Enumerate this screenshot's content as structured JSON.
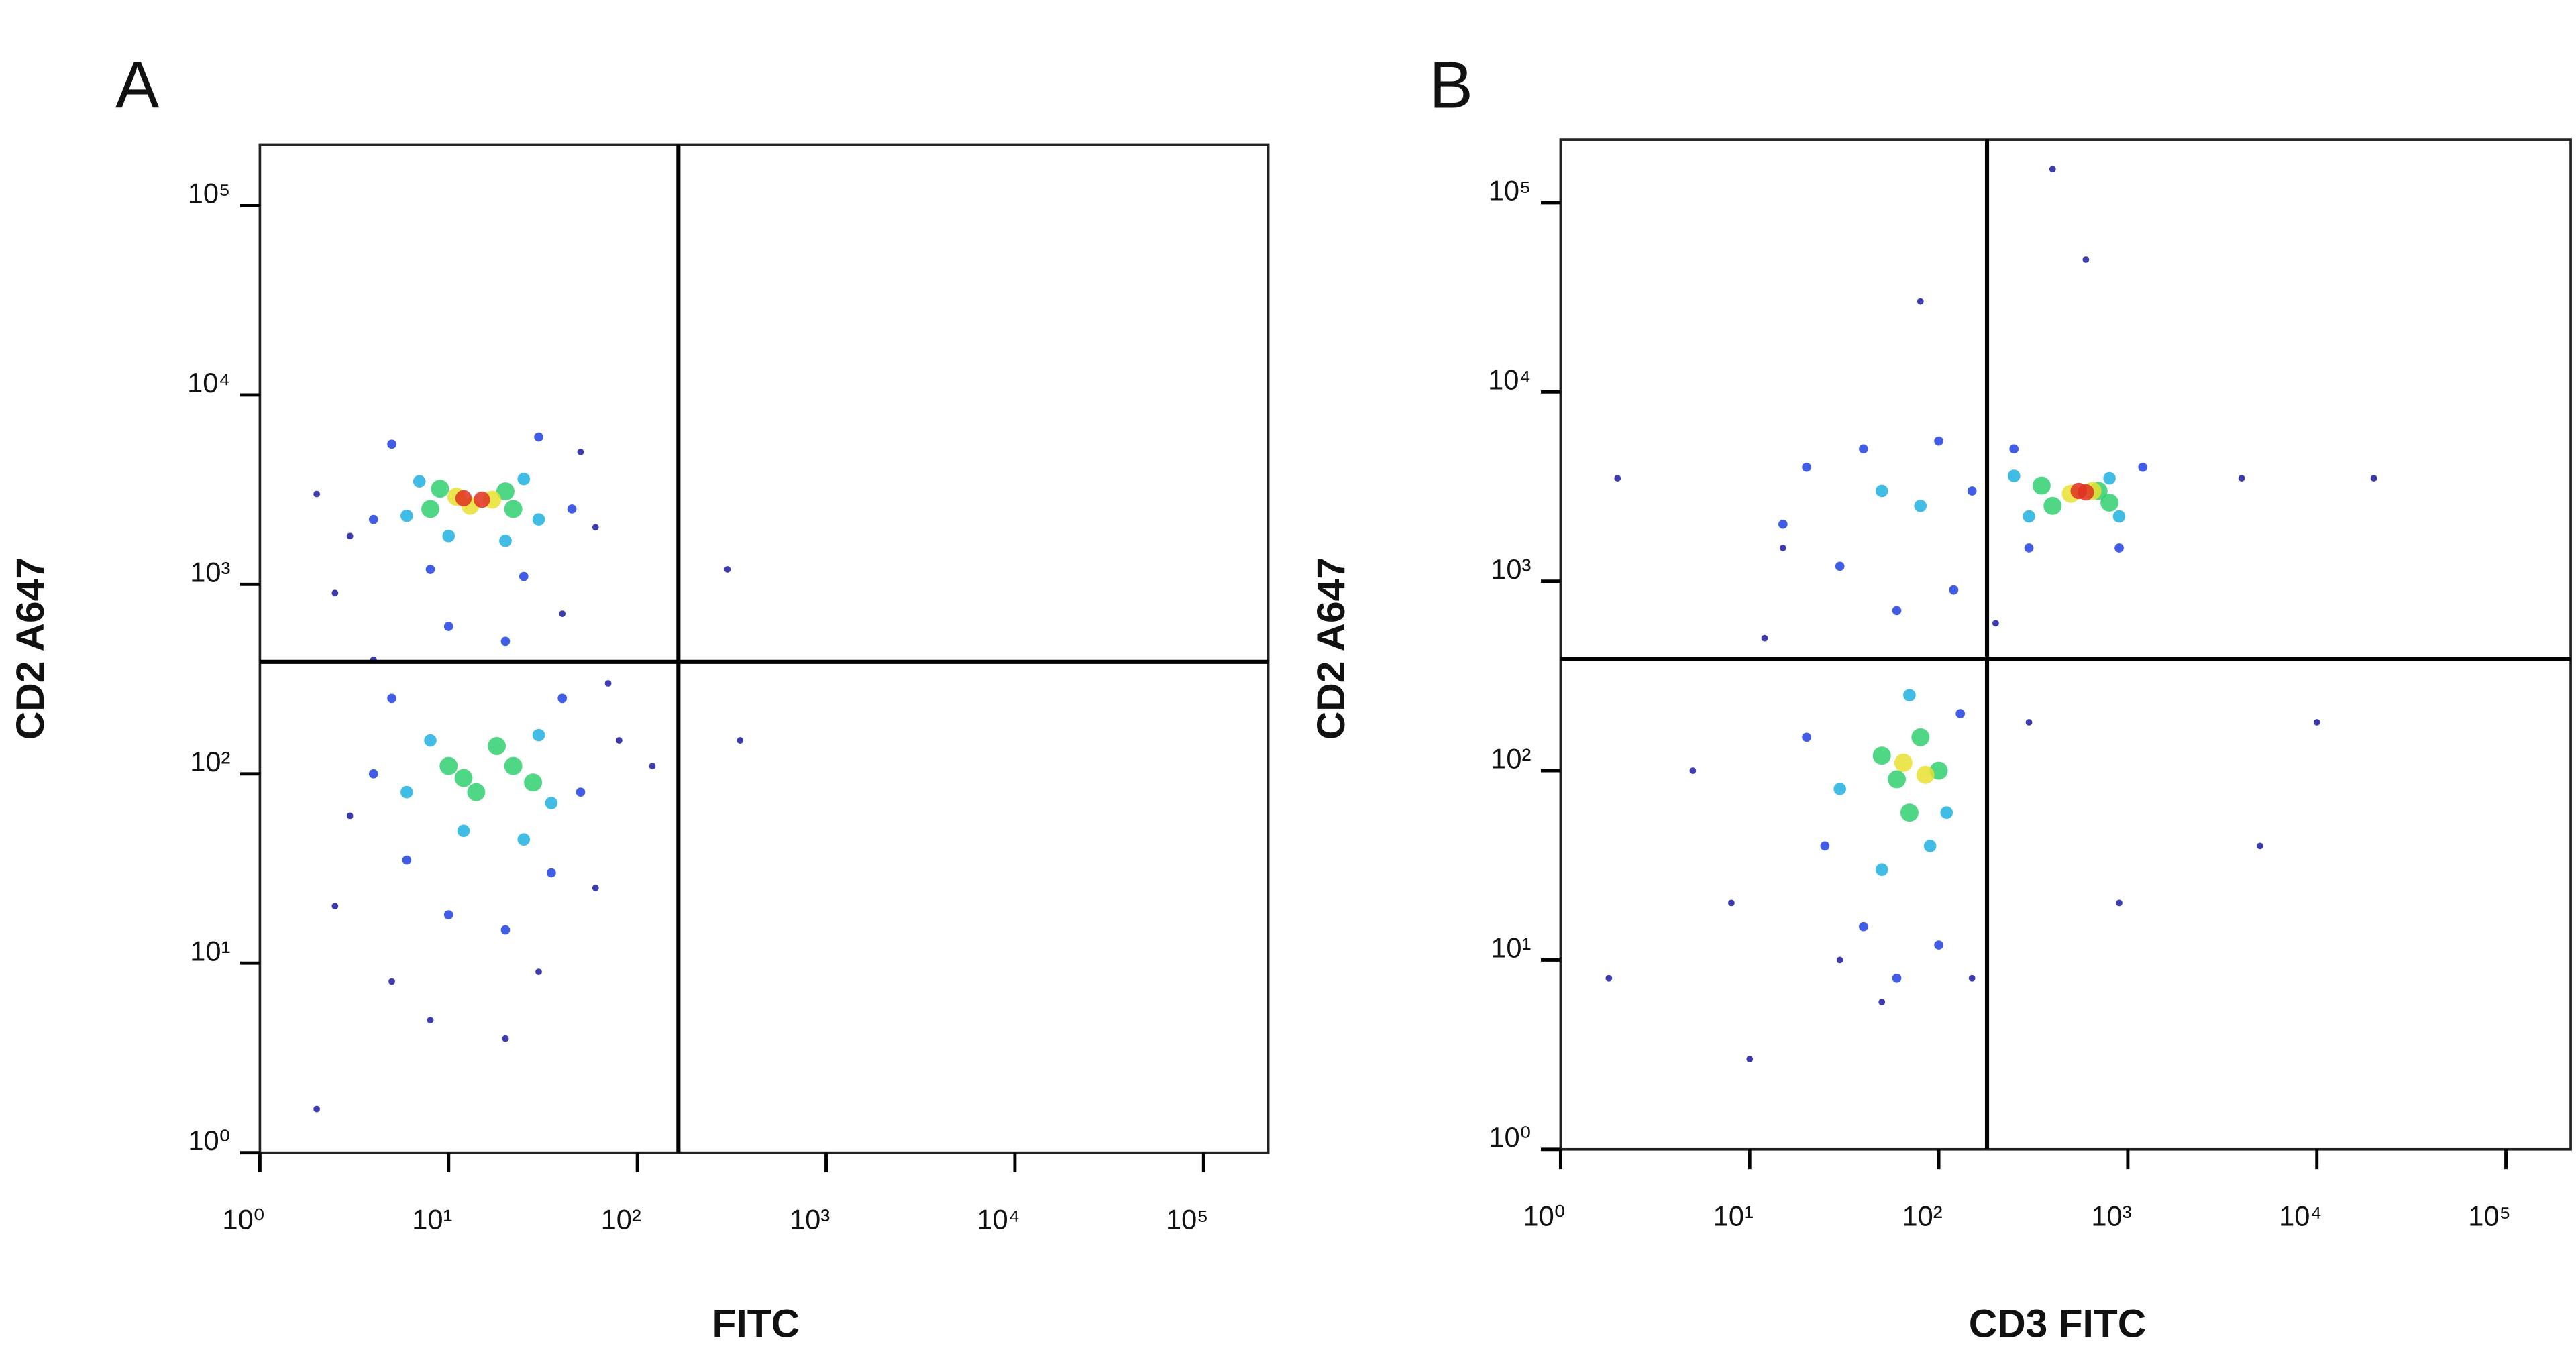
{
  "chart_data": [
    {
      "type": "scatter",
      "panel_label": "A",
      "xlabel": "FITC",
      "ylabel": "CD2 A647",
      "log_x": true,
      "log_y": true,
      "xlim": [
        1,
        220000
      ],
      "ylim": [
        1,
        210000
      ],
      "xticks": [
        {
          "value": 1,
          "label": "10⁰"
        },
        {
          "value": 10,
          "label": "10¹"
        },
        {
          "value": 100,
          "label": "10²"
        },
        {
          "value": 1000,
          "label": "10³"
        },
        {
          "value": 10000,
          "label": "10⁴"
        },
        {
          "value": 100000,
          "label": "10⁵"
        }
      ],
      "yticks": [
        {
          "value": 1,
          "label": "10⁰"
        },
        {
          "value": 10,
          "label": "10¹"
        },
        {
          "value": 100,
          "label": "10²"
        },
        {
          "value": 1000,
          "label": "10³"
        },
        {
          "value": 10000,
          "label": "10⁴"
        },
        {
          "value": 100000,
          "label": "10⁵"
        }
      ],
      "gate_x": 165,
      "gate_y": 390,
      "series": [
        {
          "color": "#1a1aa0",
          "x": [
            2,
            3,
            50,
            60,
            2.5,
            40,
            4,
            70,
            3,
            80,
            2.5,
            60,
            5,
            30,
            8,
            20,
            2,
            300,
            350,
            120
          ],
          "y": [
            3000,
            1800,
            5000,
            2000,
            900,
            700,
            400,
            300,
            60,
            150,
            20,
            25,
            8,
            9,
            5,
            4,
            1.7,
            1200,
            150,
            110
          ]
        },
        {
          "color": "#2040e0",
          "x": [
            5,
            30,
            4,
            45,
            8,
            25,
            10,
            20,
            5,
            40,
            4,
            50,
            6,
            35,
            10,
            20
          ],
          "y": [
            5500,
            6000,
            2200,
            2500,
            1200,
            1100,
            600,
            500,
            250,
            250,
            100,
            80,
            35,
            30,
            18,
            15
          ]
        },
        {
          "color": "#20b0e0",
          "x": [
            7,
            25,
            6,
            30,
            10,
            20,
            8,
            30,
            6,
            35,
            12,
            25
          ],
          "y": [
            3500,
            3600,
            2300,
            2200,
            1800,
            1700,
            150,
            160,
            80,
            70,
            50,
            45
          ]
        },
        {
          "color": "#30d070",
          "x": [
            9,
            20,
            8,
            22,
            10,
            22,
            14,
            18,
            12,
            28
          ],
          "y": [
            3200,
            3100,
            2500,
            2500,
            110,
            110,
            80,
            140,
            95,
            90
          ]
        },
        {
          "color": "#e8e030",
          "x": [
            11,
            17,
            13
          ],
          "y": [
            2900,
            2800,
            2600
          ]
        },
        {
          "color": "#e03020",
          "x": [
            12,
            15
          ],
          "y": [
            2850,
            2800
          ]
        }
      ]
    },
    {
      "type": "scatter",
      "panel_label": "B",
      "xlabel": "CD3 FITC",
      "ylabel": "CD2 A647",
      "log_x": true,
      "log_y": true,
      "xlim": [
        1,
        220000
      ],
      "ylim": [
        1,
        215000
      ],
      "xticks": [
        {
          "value": 1,
          "label": "10⁰"
        },
        {
          "value": 10,
          "label": "10¹"
        },
        {
          "value": 100,
          "label": "10²"
        },
        {
          "value": 1000,
          "label": "10³"
        },
        {
          "value": 10000,
          "label": "10⁴"
        },
        {
          "value": 100000,
          "label": "10⁵"
        }
      ],
      "yticks": [
        {
          "value": 1,
          "label": "10⁰"
        },
        {
          "value": 10,
          "label": "10¹"
        },
        {
          "value": 100,
          "label": "10²"
        },
        {
          "value": 1000,
          "label": "10³"
        },
        {
          "value": 10000,
          "label": "10⁴"
        },
        {
          "value": 100000,
          "label": "10⁵"
        }
      ],
      "gate_x": 180,
      "gate_y": 390,
      "series": [
        {
          "color": "#1a1aa0",
          "x": [
            1.8,
            600,
            400,
            4000,
            20000,
            10000,
            5000,
            900,
            300,
            2,
            5,
            8,
            15,
            12,
            30,
            10,
            50,
            150,
            200,
            80
          ],
          "y": [
            8,
            50000,
            150000,
            3500,
            3500,
            180,
            40,
            20,
            180,
            3500,
            100,
            20,
            1500,
            500,
            10,
            3,
            6,
            8,
            600,
            30000
          ]
        },
        {
          "color": "#2040e0",
          "x": [
            20,
            40,
            100,
            15,
            30,
            120,
            60,
            20,
            25,
            40,
            60,
            100,
            130,
            250,
            1200,
            300,
            900,
            150
          ],
          "y": [
            4000,
            5000,
            5500,
            2000,
            1200,
            900,
            700,
            150,
            40,
            15,
            8,
            12,
            200,
            5000,
            4000,
            1500,
            1500,
            3000
          ]
        },
        {
          "color": "#20b0e0",
          "x": [
            50,
            80,
            30,
            50,
            90,
            110,
            250,
            800,
            300,
            900,
            70
          ],
          "y": [
            3000,
            2500,
            80,
            30,
            40,
            60,
            3600,
            3500,
            2200,
            2200,
            250
          ]
        },
        {
          "color": "#30d070",
          "x": [
            60,
            80,
            50,
            100,
            70,
            350,
            700,
            400,
            800
          ],
          "y": [
            90,
            150,
            120,
            100,
            60,
            3200,
            3000,
            2500,
            2600
          ]
        },
        {
          "color": "#e8e030",
          "x": [
            65,
            85,
            500,
            650
          ],
          "y": [
            110,
            95,
            2900,
            3000
          ]
        },
        {
          "color": "#e03020",
          "x": [
            550,
            600
          ],
          "y": [
            3000,
            2950
          ]
        }
      ]
    }
  ]
}
